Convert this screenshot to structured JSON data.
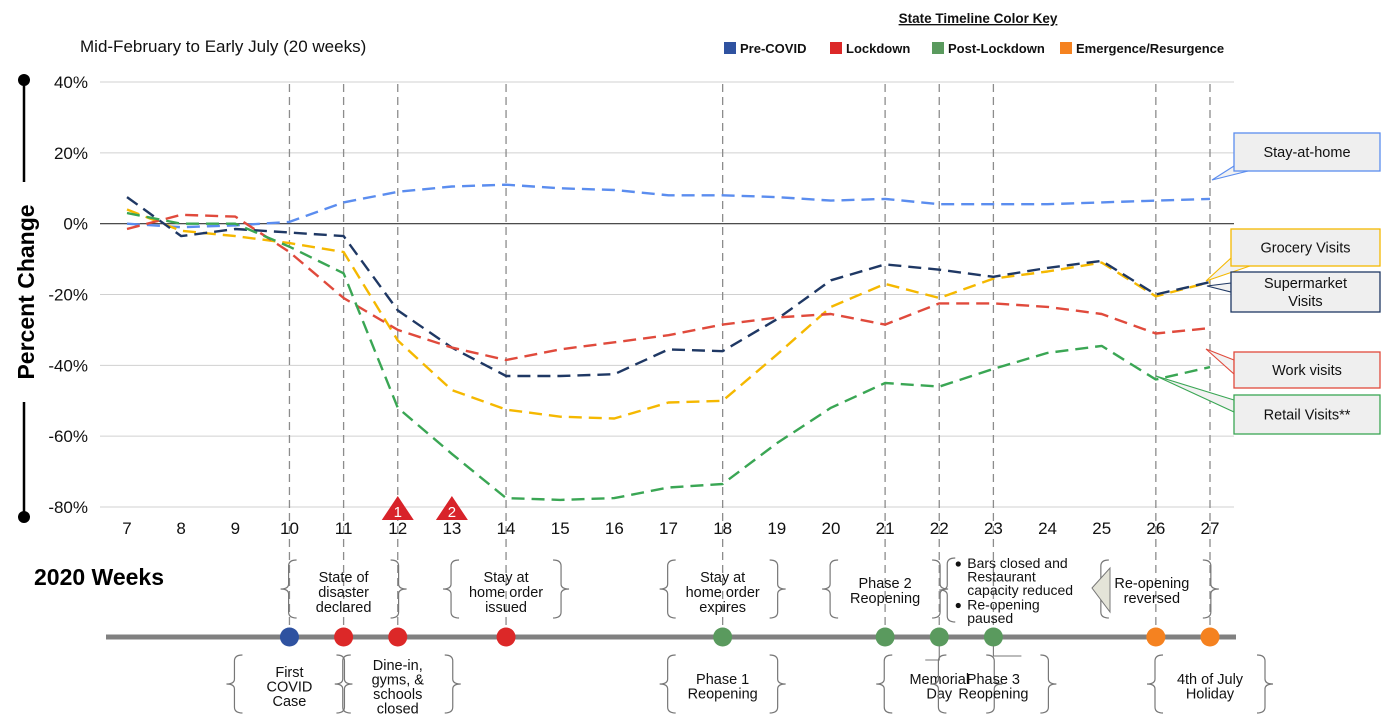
{
  "colors": {
    "pre_covid": "#2f52a0",
    "lockdown": "#dc2828",
    "post_lockdown": "#5a9a5e",
    "emergence": "#f58220",
    "stay_at_home": "#5b8def",
    "grocery": "#f5b800",
    "supermarket": "#1f3864",
    "work": "#e04a3c",
    "retail": "#3aa654"
  },
  "chart_data": {
    "type": "line",
    "title": "Mid-February to Early July (20 weeks)",
    "ylabel": "Percent Change",
    "xlabel": "2020 Weeks",
    "ylim": [
      -80,
      40
    ],
    "yticks": [
      40,
      20,
      0,
      -20,
      -40,
      -60,
      -80
    ],
    "ytick_labels": [
      "40%",
      "20%",
      "0%",
      "-20%",
      "-40%",
      "-60%",
      "-80%"
    ],
    "x": [
      7,
      8,
      9,
      10,
      11,
      12,
      13,
      14,
      15,
      16,
      17,
      18,
      19,
      20,
      21,
      22,
      23,
      24,
      25,
      26,
      27
    ],
    "series": [
      {
        "name": "Stay-at-home",
        "color_key": "stay_at_home",
        "values": [
          0,
          -1,
          -0.5,
          0.5,
          6,
          9,
          10.5,
          11,
          10,
          9.5,
          8,
          8,
          7.5,
          6.5,
          7,
          5.5,
          5.5,
          5.5,
          6,
          6.5,
          7
        ]
      },
      {
        "name": "Grocery Visits",
        "color_key": "grocery",
        "values": [
          4,
          -2,
          -3.5,
          -5.5,
          -8,
          -33,
          -47,
          -52.5,
          -54.5,
          -55,
          -50.5,
          -50,
          -37,
          -23.5,
          -17,
          -21,
          -15.5,
          -13.5,
          -11,
          -20.5,
          -16.5
        ]
      },
      {
        "name": "Supermarket Visits",
        "color_key": "supermarket",
        "values": [
          7.5,
          -3.5,
          -1.5,
          -2.5,
          -3.5,
          -24.5,
          -35,
          -43,
          -43,
          -42.5,
          -35.5,
          -36,
          -27,
          -16,
          -11.5,
          -13,
          -15,
          -12.5,
          -10.5,
          -20,
          -16.5
        ]
      },
      {
        "name": "Work visits",
        "color_key": "work",
        "values": [
          -1.5,
          2.5,
          2,
          -8,
          -21,
          -30,
          -35,
          -38.5,
          -35.5,
          -33.5,
          -31.5,
          -28.5,
          -26.5,
          -25.5,
          -28.5,
          -22.5,
          -22.5,
          -23.5,
          -25.5,
          -31,
          -29.5
        ]
      },
      {
        "name": "Retail Visits**",
        "color_key": "retail",
        "values": [
          3,
          0,
          0,
          -6.5,
          -14,
          -52,
          -65,
          -77.5,
          -78,
          -77.5,
          -74.5,
          -73.5,
          -62,
          -52,
          -45,
          -46,
          -41,
          -36.5,
          -34.5,
          -44,
          -40.5
        ]
      }
    ],
    "legend": {
      "title": "State Timeline Color Key",
      "items": [
        {
          "label": "Pre-COVID",
          "color_key": "pre_covid"
        },
        {
          "label": "Lockdown",
          "color_key": "lockdown"
        },
        {
          "label": "Post-Lockdown",
          "color_key": "post_lockdown"
        },
        {
          "label": "Emergence/Resurgence",
          "color_key": "emergence"
        }
      ]
    },
    "event_lines": [
      10,
      11,
      12,
      14,
      18,
      21,
      22,
      23,
      26,
      27
    ],
    "markers": [
      {
        "label": "1",
        "week": 12
      },
      {
        "label": "2",
        "week": 13
      }
    ],
    "timeline_points": [
      {
        "week": 10,
        "state": "pre_covid"
      },
      {
        "week": 11,
        "state": "lockdown"
      },
      {
        "week": 12,
        "state": "lockdown"
      },
      {
        "week": 14,
        "state": "lockdown"
      },
      {
        "week": 18,
        "state": "post_lockdown"
      },
      {
        "week": 21,
        "state": "post_lockdown"
      },
      {
        "week": 22,
        "state": "post_lockdown"
      },
      {
        "week": 23,
        "state": "post_lockdown"
      },
      {
        "week": 26,
        "state": "emergence"
      },
      {
        "week": 27,
        "state": "emergence"
      }
    ],
    "upper_events": [
      {
        "week": 11,
        "lines": [
          "State of",
          "disaster",
          "declared"
        ]
      },
      {
        "week": 14,
        "lines": [
          "Stay at",
          "home order",
          "issued"
        ]
      },
      {
        "week": 18,
        "lines": [
          "Stay at",
          "home order",
          "expires"
        ]
      },
      {
        "week": 21,
        "lines": [
          "Phase 2",
          "Reopening"
        ]
      },
      {
        "week": 26,
        "lines": [
          "Re-opening",
          "reversed"
        ]
      }
    ],
    "bullet_event": {
      "items": [
        [
          "Bars closed and",
          "Restaurant",
          "capacity reduced"
        ],
        [
          "Re-opening",
          "paused"
        ]
      ]
    },
    "lower_events": [
      {
        "week": 10,
        "lines": [
          "First",
          "COVID",
          "Case"
        ]
      },
      {
        "week": 12,
        "lines": [
          "Dine-in,",
          "gyms, &",
          "schools",
          "closed"
        ]
      },
      {
        "week": 18,
        "lines": [
          "Phase 1",
          "Reopening"
        ]
      },
      {
        "week": 22,
        "lines": [
          "Memorial",
          "Day"
        ]
      },
      {
        "week": 23,
        "lines": [
          "Phase 3",
          "Reopening"
        ]
      },
      {
        "week": 27,
        "lines": [
          "4th of July",
          "Holiday"
        ]
      }
    ]
  }
}
